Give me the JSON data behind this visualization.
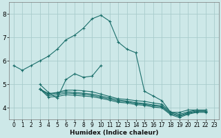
{
  "xlabel": "Humidex (Indice chaleur)",
  "background_color": "#cde8e8",
  "grid_color": "#a8cccc",
  "line_color": "#1a6e6a",
  "xlim": [
    -0.5,
    23.5
  ],
  "ylim": [
    3.5,
    8.5
  ],
  "yticks": [
    4,
    5,
    6,
    7,
    8
  ],
  "xticks": [
    0,
    1,
    2,
    3,
    4,
    5,
    6,
    7,
    8,
    9,
    10,
    11,
    12,
    13,
    14,
    15,
    16,
    17,
    18,
    19,
    20,
    21,
    22,
    23
  ],
  "series": [
    [
      5.8,
      5.6,
      5.8,
      6.0,
      6.2,
      6.5,
      6.9,
      7.1,
      7.4,
      7.8,
      7.95,
      7.7,
      6.8,
      6.5,
      6.35,
      4.7,
      4.5,
      4.3,
      3.8,
      3.8,
      3.9,
      3.9,
      null,
      null
    ],
    [
      null,
      null,
      null,
      5.0,
      4.65,
      4.4,
      5.2,
      5.45,
      5.3,
      5.35,
      5.8,
      null,
      null,
      null,
      null,
      null,
      null,
      null,
      null,
      null,
      null,
      null,
      null,
      null
    ],
    [
      null,
      null,
      null,
      4.8,
      4.6,
      4.65,
      4.75,
      4.75,
      4.72,
      4.68,
      4.58,
      4.48,
      4.38,
      4.35,
      4.3,
      4.27,
      4.2,
      4.15,
      3.82,
      3.72,
      3.82,
      3.9,
      3.9,
      null
    ],
    [
      null,
      null,
      null,
      4.8,
      4.58,
      4.62,
      4.68,
      4.65,
      4.62,
      4.58,
      4.5,
      4.42,
      4.33,
      4.28,
      4.22,
      4.18,
      4.12,
      4.08,
      3.78,
      3.67,
      3.78,
      3.86,
      3.86,
      null
    ],
    [
      null,
      null,
      null,
      4.8,
      4.52,
      4.55,
      4.62,
      4.6,
      4.57,
      4.53,
      4.45,
      4.37,
      4.28,
      4.25,
      4.18,
      4.14,
      4.08,
      4.04,
      3.74,
      3.63,
      3.75,
      3.83,
      3.83,
      null
    ],
    [
      null,
      null,
      null,
      4.8,
      4.45,
      4.48,
      4.55,
      4.53,
      4.5,
      4.47,
      4.4,
      4.32,
      4.23,
      4.2,
      4.13,
      4.1,
      4.03,
      3.99,
      3.7,
      3.58,
      3.72,
      3.8,
      3.8,
      null
    ]
  ]
}
